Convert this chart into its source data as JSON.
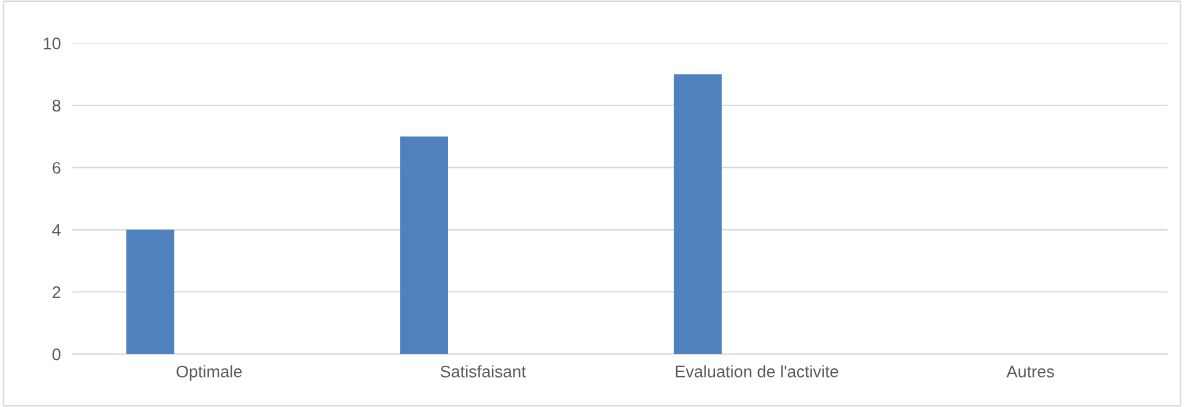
{
  "chart_data": {
    "type": "bar",
    "categories": [
      "Optimale",
      "Satisfaisant",
      "Evaluation de l'activite",
      "Autres"
    ],
    "values": [
      4,
      7,
      9,
      null
    ],
    "color": "#4f81bd",
    "ylim": [
      0,
      10
    ],
    "yticks": [
      0,
      2,
      4,
      6,
      8,
      10
    ],
    "grid": "y",
    "legend": false
  }
}
